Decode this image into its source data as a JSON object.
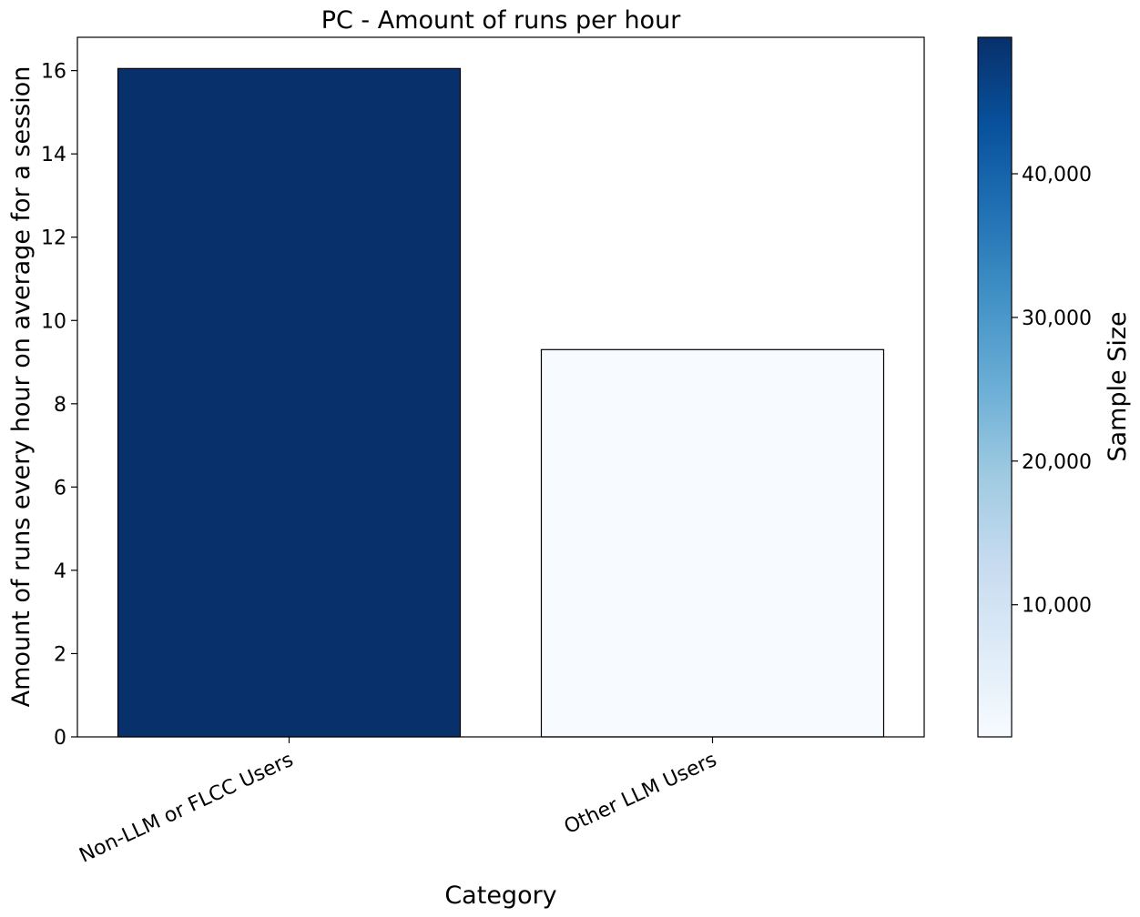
{
  "chart_data": {
    "type": "bar",
    "title": "PC - Amount of runs per hour",
    "xlabel": "Category",
    "ylabel": "Amount of runs every hour on average for a session",
    "categories": [
      "Non-LLM or FLCC Users",
      "Other LLM Users"
    ],
    "values": [
      16.05,
      9.3
    ],
    "sample_sizes": [
      49500,
      800
    ],
    "ylim": [
      0,
      16.8
    ],
    "yticks": [
      0,
      2,
      4,
      6,
      8,
      10,
      12,
      14,
      16
    ],
    "grid": false,
    "colorbar": {
      "label": "Sample Size",
      "colormap": "Blues",
      "range": [
        800,
        49500
      ],
      "ticks": [
        10000,
        20000,
        30000,
        40000
      ],
      "tick_labels": [
        "10,000",
        "20,000",
        "30,000",
        "40,000"
      ],
      "colors": [
        "#f7fbff",
        "#deebf7",
        "#c6dbef",
        "#9ecae1",
        "#6baed6",
        "#4292c6",
        "#2171b5",
        "#08519c",
        "#08306b"
      ]
    },
    "bar_edge_color": "#000000"
  }
}
